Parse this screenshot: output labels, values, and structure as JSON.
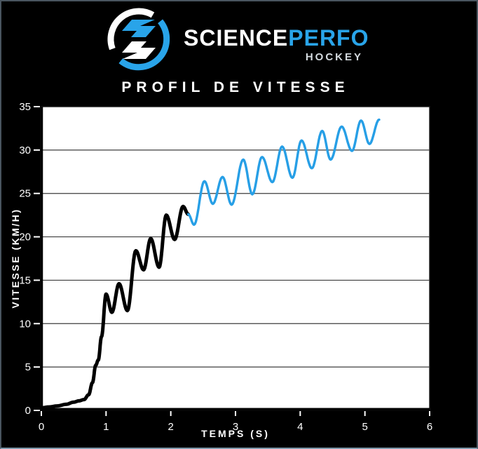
{
  "window": {
    "bg": "#000000",
    "border_color": "#49555f"
  },
  "logo": {
    "icon": "scienceperfo-s-icon",
    "brand_primary": "SCIENCE",
    "brand_secondary": "PERFO",
    "brand_sub": "HOCKEY",
    "colors": {
      "white": "#ffffff",
      "blue": "#29a4e9",
      "sub": "#d4dadf"
    }
  },
  "chart_data": {
    "type": "line",
    "title": "PROFIL DE VITESSE",
    "xlabel": "TEMPS (S)",
    "ylabel": "VITESSE (KM/H)",
    "xlim": [
      0,
      6
    ],
    "ylim": [
      0,
      35
    ],
    "xticks": [
      0,
      1,
      2,
      3,
      4,
      5,
      6
    ],
    "yticks": [
      0,
      5,
      10,
      15,
      20,
      25,
      30,
      35
    ],
    "grid": "horizontal",
    "plot_bg": "#ffffff",
    "gridline_color": "#3d3d3d",
    "axis_color": "#000000",
    "tick_color": "#ffffff",
    "series": [
      {
        "name": "acceleration-phase",
        "color": "#000000",
        "width": 5,
        "points": [
          [
            0.0,
            0.3
          ],
          [
            0.12,
            0.4
          ],
          [
            0.25,
            0.52
          ],
          [
            0.38,
            0.7
          ],
          [
            0.5,
            0.95
          ],
          [
            0.58,
            1.1
          ],
          [
            0.66,
            1.25
          ],
          [
            0.73,
            1.8
          ],
          [
            0.79,
            3.2
          ],
          [
            0.84,
            5.2
          ],
          [
            0.88,
            5.8
          ],
          [
            0.93,
            8.5
          ],
          [
            1.0,
            13.4
          ],
          [
            1.09,
            11.3
          ],
          [
            1.2,
            14.6
          ],
          [
            1.33,
            11.5
          ],
          [
            1.46,
            18.4
          ],
          [
            1.58,
            16.2
          ],
          [
            1.69,
            19.8
          ],
          [
            1.82,
            16.5
          ],
          [
            1.93,
            22.5
          ],
          [
            2.06,
            19.7
          ],
          [
            2.19,
            23.5
          ],
          [
            2.27,
            22.6
          ]
        ]
      },
      {
        "name": "vitesse-max-phase",
        "color": "#279fe6",
        "width": 3.4,
        "points": [
          [
            2.27,
            22.6
          ],
          [
            2.36,
            21.4
          ],
          [
            2.52,
            26.4
          ],
          [
            2.65,
            23.8
          ],
          [
            2.8,
            26.9
          ],
          [
            2.94,
            23.7
          ],
          [
            3.12,
            28.9
          ],
          [
            3.26,
            24.9
          ],
          [
            3.41,
            29.2
          ],
          [
            3.57,
            26.3
          ],
          [
            3.72,
            30.4
          ],
          [
            3.88,
            26.8
          ],
          [
            4.02,
            31.1
          ],
          [
            4.18,
            27.9
          ],
          [
            4.34,
            32.2
          ],
          [
            4.47,
            28.9
          ],
          [
            4.64,
            32.7
          ],
          [
            4.8,
            29.9
          ],
          [
            4.94,
            33.4
          ],
          [
            5.07,
            30.7
          ],
          [
            5.22,
            33.5
          ]
        ]
      }
    ]
  }
}
